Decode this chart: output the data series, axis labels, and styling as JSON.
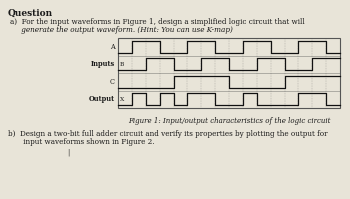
{
  "title": "Question",
  "part_a_line1": "a)  For the input waveforms in Figure 1, design a simplified logic circuit that will",
  "part_a_line2": "     generate the output waveform. (Hint: You can use K-map)",
  "part_b_line1": "b)  Design a two-bit full adder circuit and verify its properties by plotting the output for",
  "part_b_line2": "     input waveforms shown in Figure 2.",
  "figure_caption": "Figure 1: Input/output characteristics of the logic circuit",
  "signal_labels_left": [
    "A",
    "Inputs  B",
    "C",
    "Output  X"
  ],
  "signal_short_labels": [
    "A",
    "B",
    "C",
    "X"
  ],
  "label_bold": [
    false,
    true,
    false,
    true
  ],
  "bg_color": "#e8e4d8",
  "text_color": "#1a1a1a",
  "wave_color": "#111111",
  "grid_color": "#555555",
  "title_fontsize": 6.5,
  "body_fontsize": 5.2,
  "label_fontsize": 4.8,
  "caption_fontsize": 5.0,
  "waveform_A": [
    0,
    1,
    1,
    0,
    0,
    1,
    1,
    0,
    0,
    1,
    1,
    0,
    0,
    1,
    1,
    0
  ],
  "waveform_B": [
    0,
    0,
    1,
    1,
    0,
    0,
    1,
    1,
    0,
    0,
    1,
    1,
    0,
    0,
    1,
    1
  ],
  "waveform_C": [
    0,
    0,
    0,
    0,
    1,
    1,
    1,
    1,
    0,
    0,
    0,
    0,
    1,
    1,
    1,
    1
  ],
  "waveform_X": [
    0,
    1,
    0,
    1,
    0,
    1,
    1,
    0,
    0,
    1,
    0,
    0,
    0,
    1,
    1,
    0
  ]
}
